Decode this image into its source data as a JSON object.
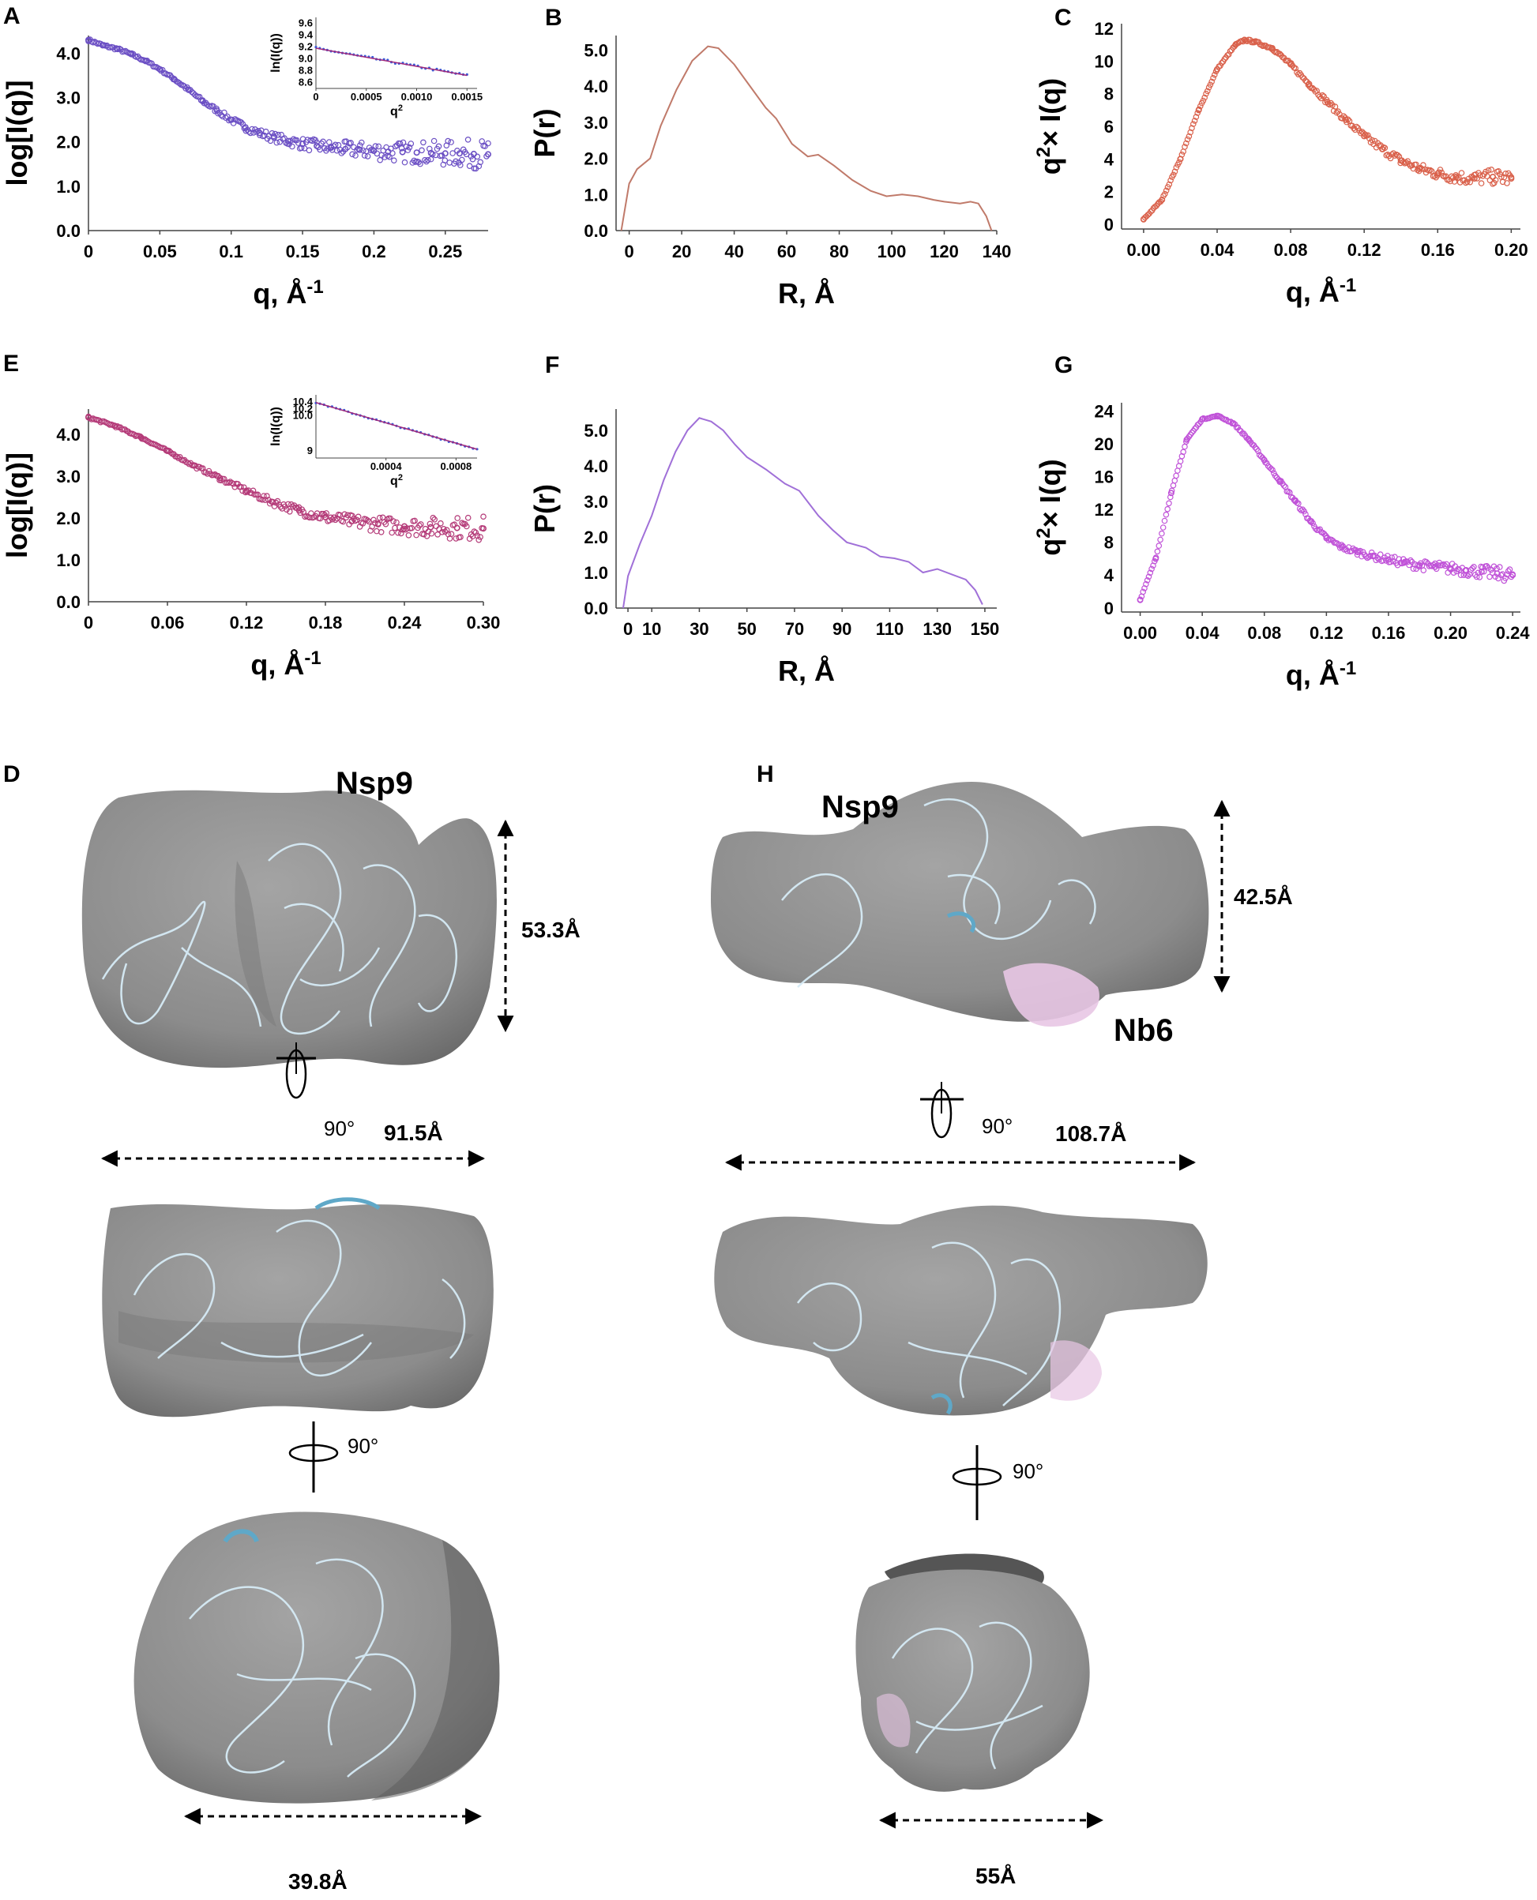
{
  "chart_data": [
    {
      "panel": "A",
      "type": "scatter",
      "color": "#6b4fc4",
      "ylabel": "log[I(q)]",
      "xlabel": "q, Å-1",
      "xlim": [
        0,
        0.28
      ],
      "ylim": [
        0,
        4.4
      ],
      "xticks": [
        "0",
        "0.05",
        "0.1",
        "0.15",
        "0.2",
        "0.25"
      ],
      "xtick_values": [
        0,
        0.05,
        0.1,
        0.15,
        0.2,
        0.25
      ],
      "yticks": [
        "0.0",
        "1.0",
        "2.0",
        "3.0",
        "4.0"
      ],
      "ytick_values": [
        0,
        1,
        2,
        3,
        4
      ],
      "points": [
        [
          0.0,
          4.3
        ],
        [
          0.01,
          4.18
        ],
        [
          0.02,
          4.1
        ],
        [
          0.03,
          3.98
        ],
        [
          0.04,
          3.83
        ],
        [
          0.05,
          3.64
        ],
        [
          0.06,
          3.42
        ],
        [
          0.07,
          3.18
        ],
        [
          0.08,
          2.92
        ],
        [
          0.09,
          2.71
        ],
        [
          0.1,
          2.5
        ],
        [
          0.11,
          2.33
        ],
        [
          0.12,
          2.2
        ],
        [
          0.13,
          2.1
        ],
        [
          0.14,
          2.02
        ],
        [
          0.15,
          1.96
        ],
        [
          0.16,
          1.91
        ],
        [
          0.17,
          1.87
        ],
        [
          0.18,
          1.84
        ],
        [
          0.19,
          1.82
        ],
        [
          0.2,
          1.8
        ],
        [
          0.21,
          1.78
        ],
        [
          0.22,
          1.77
        ],
        [
          0.23,
          1.76
        ],
        [
          0.24,
          1.75
        ],
        [
          0.25,
          1.74
        ],
        [
          0.26,
          1.74
        ],
        [
          0.27,
          1.73
        ],
        [
          0.28,
          1.72
        ]
      ],
      "scatter_spread": 0.35,
      "inset": {
        "ylabel": "ln(I(q))",
        "xlabel": "q2",
        "xlim": [
          0,
          0.0016
        ],
        "ylim": [
          8.5,
          9.7
        ],
        "xticks": [
          "0",
          "0.0005",
          "0.0010",
          "0.0015"
        ],
        "xtick_values": [
          0,
          0.0005,
          0.001,
          0.0015
        ],
        "yticks": [
          "8.6",
          "8.8",
          "9.0",
          "9.2",
          "9.4",
          "9.6"
        ],
        "ytick_values": [
          8.6,
          8.8,
          9.0,
          9.2,
          9.4,
          9.6
        ],
        "line": [
          [
            0,
            9.18
          ],
          [
            0.0015,
            8.72
          ]
        ]
      }
    },
    {
      "panel": "B",
      "type": "line",
      "color": "#c07a6a",
      "ylabel": "P(r)",
      "xlabel": "R, Å",
      "xlim": [
        -5,
        140
      ],
      "ylim": [
        0,
        5.4
      ],
      "xticks": [
        "0",
        "20",
        "40",
        "60",
        "80",
        "100",
        "120",
        "140"
      ],
      "xtick_values": [
        0,
        20,
        40,
        60,
        80,
        100,
        120,
        140
      ],
      "yticks": [
        "0.0",
        "1.0",
        "2.0",
        "3.0",
        "4.0",
        "5.0"
      ],
      "ytick_values": [
        0,
        1,
        2,
        3,
        4,
        5
      ],
      "points": [
        [
          -3,
          0
        ],
        [
          0,
          1.3
        ],
        [
          3,
          1.7
        ],
        [
          8,
          2.0
        ],
        [
          12,
          2.9
        ],
        [
          18,
          3.9
        ],
        [
          24,
          4.7
        ],
        [
          30,
          5.1
        ],
        [
          34,
          5.05
        ],
        [
          40,
          4.6
        ],
        [
          46,
          4.0
        ],
        [
          52,
          3.4
        ],
        [
          56,
          3.1
        ],
        [
          62,
          2.4
        ],
        [
          68,
          2.05
        ],
        [
          72,
          2.1
        ],
        [
          78,
          1.8
        ],
        [
          85,
          1.4
        ],
        [
          92,
          1.1
        ],
        [
          98,
          0.95
        ],
        [
          104,
          1.0
        ],
        [
          110,
          0.95
        ],
        [
          116,
          0.85
        ],
        [
          120,
          0.8
        ],
        [
          126,
          0.75
        ],
        [
          130,
          0.8
        ],
        [
          133,
          0.75
        ],
        [
          136,
          0.4
        ],
        [
          138,
          0
        ]
      ]
    },
    {
      "panel": "C",
      "type": "scatter",
      "color": "#d9604a",
      "ylabel": "q2× I(q)",
      "xlabel": "q, Å-1",
      "xlim": [
        -0.012,
        0.205
      ],
      "ylim": [
        -0.3,
        12.3
      ],
      "xticks": [
        "0.00",
        "0.04",
        "0.08",
        "0.12",
        "0.16",
        "0.20"
      ],
      "xtick_values": [
        0,
        0.04,
        0.08,
        0.12,
        0.16,
        0.2
      ],
      "yticks": [
        "0",
        "2",
        "4",
        "6",
        "8",
        "10",
        "12"
      ],
      "ytick_values": [
        0,
        2,
        4,
        6,
        8,
        10,
        12
      ],
      "points": [
        [
          0.0,
          0.3
        ],
        [
          0.01,
          1.5
        ],
        [
          0.02,
          4.0
        ],
        [
          0.03,
          7.0
        ],
        [
          0.04,
          9.5
        ],
        [
          0.05,
          11.0
        ],
        [
          0.055,
          11.3
        ],
        [
          0.06,
          11.2
        ],
        [
          0.07,
          10.8
        ],
        [
          0.08,
          9.8
        ],
        [
          0.09,
          8.6
        ],
        [
          0.1,
          7.5
        ],
        [
          0.11,
          6.4
        ],
        [
          0.12,
          5.4
        ],
        [
          0.13,
          4.6
        ],
        [
          0.14,
          3.9
        ],
        [
          0.15,
          3.4
        ],
        [
          0.16,
          3.1
        ],
        [
          0.17,
          2.9
        ],
        [
          0.18,
          2.8
        ],
        [
          0.19,
          2.9
        ],
        [
          0.2,
          2.8
        ]
      ],
      "scatter_spread": 0.5
    },
    {
      "panel": "E",
      "type": "scatter",
      "color": "#b43a78",
      "ylabel": "log[I(q)]",
      "xlabel": "q, Å-1",
      "xlim": [
        0,
        0.3
      ],
      "ylim": [
        0,
        4.6
      ],
      "xticks": [
        "0",
        "0.06",
        "0.12",
        "0.18",
        "0.24",
        "0.30"
      ],
      "xtick_values": [
        0,
        0.06,
        0.12,
        0.18,
        0.24,
        0.3
      ],
      "yticks": [
        "0.0",
        "1.0",
        "2.0",
        "3.0",
        "4.0"
      ],
      "ytick_values": [
        0,
        1,
        2,
        3,
        4
      ],
      "points": [
        [
          0.0,
          4.4
        ],
        [
          0.02,
          4.2
        ],
        [
          0.04,
          3.92
        ],
        [
          0.06,
          3.6
        ],
        [
          0.08,
          3.25
        ],
        [
          0.1,
          2.95
        ],
        [
          0.12,
          2.65
        ],
        [
          0.14,
          2.38
        ],
        [
          0.16,
          2.18
        ],
        [
          0.18,
          2.02
        ],
        [
          0.2,
          1.92
        ],
        [
          0.22,
          1.85
        ],
        [
          0.24,
          1.8
        ],
        [
          0.26,
          1.78
        ],
        [
          0.28,
          1.76
        ],
        [
          0.3,
          1.75
        ]
      ],
      "scatter_spread": 0.3,
      "inset": {
        "ylabel": "ln(I(q))",
        "xlabel": "q2",
        "xlim": [
          0,
          0.00092
        ],
        "ylim": [
          8.8,
          10.6
        ],
        "xticks": [
          "0.0004",
          "0.0008"
        ],
        "xtick_values": [
          0.0004,
          0.0008
        ],
        "yticks": [
          "9",
          "10.0",
          "10.2",
          "10.4"
        ],
        "ytick_values": [
          9.0,
          10.0,
          10.2,
          10.4
        ],
        "line": [
          [
            0,
            10.38
          ],
          [
            0.00092,
            9.05
          ]
        ]
      }
    },
    {
      "panel": "F",
      "type": "line",
      "color": "#a070d8",
      "ylabel": "P(r)",
      "xlabel": "R, Å",
      "xlim": [
        -5,
        155
      ],
      "ylim": [
        0,
        5.6
      ],
      "xticks": [
        "0",
        "10",
        "30",
        "50",
        "70",
        "90",
        "110",
        "130",
        "150"
      ],
      "xtick_values": [
        0,
        10,
        30,
        50,
        70,
        90,
        110,
        130,
        150
      ],
      "yticks": [
        "0.0",
        "1.0",
        "2.0",
        "3.0",
        "4.0",
        "5.0"
      ],
      "ytick_values": [
        0,
        1,
        2,
        3,
        4,
        5
      ],
      "points": [
        [
          -2,
          0
        ],
        [
          0,
          0.9
        ],
        [
          5,
          1.8
        ],
        [
          10,
          2.6
        ],
        [
          15,
          3.6
        ],
        [
          20,
          4.4
        ],
        [
          25,
          5.0
        ],
        [
          30,
          5.35
        ],
        [
          35,
          5.25
        ],
        [
          40,
          5.0
        ],
        [
          45,
          4.6
        ],
        [
          50,
          4.25
        ],
        [
          58,
          3.9
        ],
        [
          66,
          3.5
        ],
        [
          72,
          3.3
        ],
        [
          80,
          2.6
        ],
        [
          86,
          2.2
        ],
        [
          92,
          1.85
        ],
        [
          100,
          1.7
        ],
        [
          106,
          1.45
        ],
        [
          112,
          1.4
        ],
        [
          118,
          1.3
        ],
        [
          124,
          1.0
        ],
        [
          130,
          1.1
        ],
        [
          136,
          0.95
        ],
        [
          142,
          0.8
        ],
        [
          146,
          0.5
        ],
        [
          149,
          0.1
        ]
      ]
    },
    {
      "panel": "G",
      "type": "scatter",
      "color": "#c052d8",
      "ylabel": "q2× I(q)",
      "xlabel": "q, Å-1",
      "xlim": [
        -0.012,
        0.245
      ],
      "ylim": [
        -0.5,
        25
      ],
      "xticks": [
        "0.00",
        "0.04",
        "0.08",
        "0.12",
        "0.16",
        "0.20",
        "0.24"
      ],
      "xtick_values": [
        0,
        0.04,
        0.08,
        0.12,
        0.16,
        0.2,
        0.24
      ],
      "yticks": [
        "0",
        "4",
        "8",
        "12",
        "16",
        "20",
        "24"
      ],
      "ytick_values": [
        0,
        4,
        8,
        12,
        16,
        20,
        24
      ],
      "points": [
        [
          0.0,
          1.0
        ],
        [
          0.01,
          6.0
        ],
        [
          0.02,
          14.0
        ],
        [
          0.03,
          20.5
        ],
        [
          0.04,
          23.0
        ],
        [
          0.05,
          23.4
        ],
        [
          0.06,
          22.5
        ],
        [
          0.07,
          20.5
        ],
        [
          0.08,
          18.0
        ],
        [
          0.09,
          15.5
        ],
        [
          0.1,
          13.0
        ],
        [
          0.11,
          10.5
        ],
        [
          0.12,
          8.5
        ],
        [
          0.13,
          7.4
        ],
        [
          0.14,
          6.8
        ],
        [
          0.15,
          6.3
        ],
        [
          0.16,
          5.9
        ],
        [
          0.17,
          5.5
        ],
        [
          0.18,
          5.2
        ],
        [
          0.19,
          5.0
        ],
        [
          0.2,
          4.8
        ],
        [
          0.21,
          4.6
        ],
        [
          0.22,
          4.4
        ],
        [
          0.23,
          4.2
        ],
        [
          0.24,
          4.0
        ]
      ],
      "scatter_spread": 0.9
    }
  ],
  "models": [
    {
      "panel": "D",
      "label": "Nsp9",
      "width_label": "91.5Å",
      "height_label": "53.3Å",
      "rotation_1": "90°",
      "rotation_2": "90°",
      "bottom_label": "39.8Å"
    },
    {
      "panel": "H",
      "label": "Nsp9",
      "label_2": "Nb6",
      "width_label": "108.7Å",
      "height_label": "42.5Å",
      "rotation_1": "90°",
      "rotation_2": "90°",
      "bottom_label": "55Å"
    }
  ],
  "colors": {
    "map": "#8e8e8e",
    "map_dark": "#5e5e5e",
    "ribbon": "#cfe6f3",
    "ribbon_dark": "#5fa8c8",
    "nb6": "#e8c6e4"
  }
}
